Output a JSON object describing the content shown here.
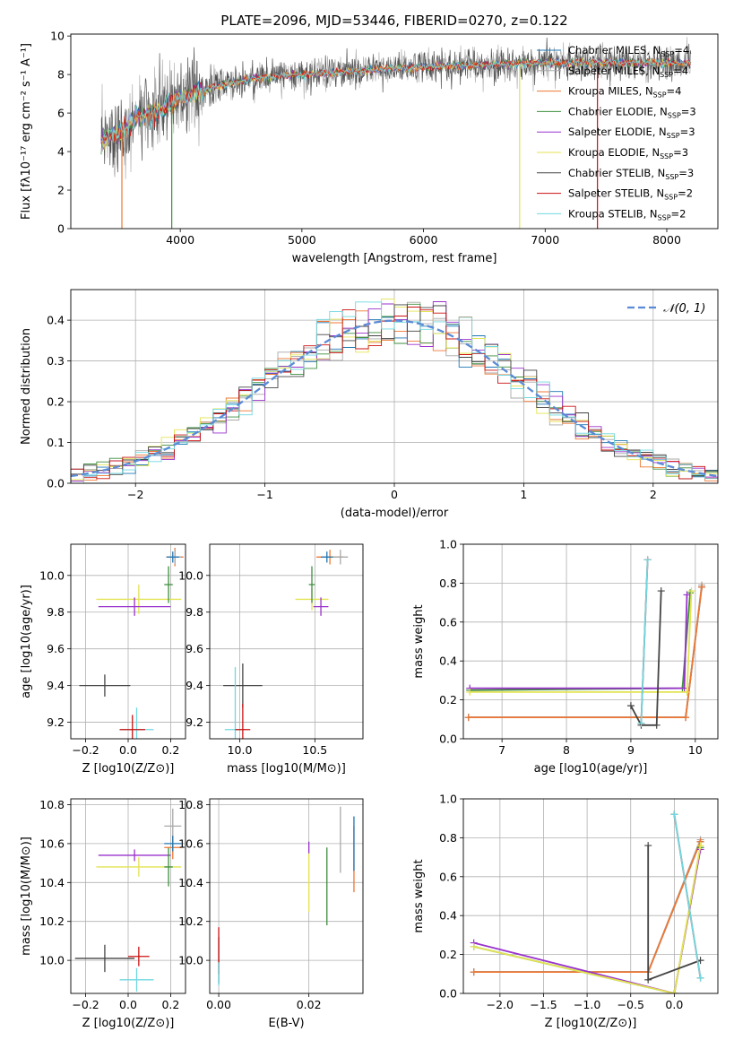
{
  "figure": {
    "title": "PLATE=2096, MJD=53446, FIBERID=0270, z=0.122"
  },
  "models": [
    {
      "name": "Chabrier MILES",
      "nssp": "4",
      "color": "#1f77b4"
    },
    {
      "name": "Salpeter MILES",
      "nssp": "4",
      "color": "#a8a8a8"
    },
    {
      "name": "Kroupa MILES",
      "nssp": "4",
      "color": "#ee7733"
    },
    {
      "name": "Chabrier ELODIE",
      "nssp": "3",
      "color": "#3e8e3e"
    },
    {
      "name": "Salpeter ELODIE",
      "nssp": "3",
      "color": "#9932cc"
    },
    {
      "name": "Kroupa ELODIE",
      "nssp": "3",
      "color": "#e3e352"
    },
    {
      "name": "Chabrier STELIB",
      "nssp": "3",
      "color": "#444444"
    },
    {
      "name": "Salpeter STELIB",
      "nssp": "2",
      "color": "#cc1111"
    },
    {
      "name": "Kroupa STELIB",
      "nssp": "2",
      "color": "#6fd8e0"
    }
  ],
  "chart_data": [
    {
      "id": "spectrum",
      "type": "line",
      "xlabel": "wavelength [Angstrom, rest frame]",
      "ylabel": "Flux [fλ10⁻¹⁷ erg cm⁻² s⁻¹ A⁻¹]",
      "xlim": [
        3100,
        8420
      ],
      "ylim": [
        0,
        10.1
      ],
      "xticks": [
        4000,
        5000,
        6000,
        7000,
        8000
      ],
      "yticks": [
        0,
        2,
        4,
        6,
        8,
        10
      ],
      "legend": "right",
      "data_range": [
        3350,
        8200
      ],
      "continuum": [
        [
          3350,
          4.6
        ],
        [
          3500,
          5.0
        ],
        [
          3650,
          5.8
        ],
        [
          3800,
          6.0
        ],
        [
          3950,
          6.6
        ],
        [
          4100,
          7.0
        ],
        [
          4300,
          7.4
        ],
        [
          4600,
          7.8
        ],
        [
          5000,
          8.0
        ],
        [
          5500,
          8.2
        ],
        [
          6000,
          8.4
        ],
        [
          6500,
          8.5
        ],
        [
          7000,
          8.6
        ],
        [
          7500,
          8.6
        ],
        [
          8000,
          8.6
        ],
        [
          8200,
          8.6
        ]
      ]
    },
    {
      "id": "residuals",
      "type": "line",
      "xlabel": "(data-model)/error",
      "ylabel": "Normed distribution",
      "xlim": [
        -2.5,
        2.5
      ],
      "ylim": [
        0,
        0.475
      ],
      "xticks": [
        -2,
        -1,
        0,
        1,
        2
      ],
      "yticks": [
        0,
        0.1,
        0.2,
        0.3,
        0.4
      ],
      "reference": {
        "name": "𝒩(0, 1)",
        "color": "#5b8bd6"
      },
      "legend": "top-right",
      "bin_width": 0.1
    },
    {
      "id": "age_vs_Z",
      "type": "scatter",
      "xlabel": "Z [log10(Z/Z⊙)]",
      "ylabel": "age  [log10(age/yr)]",
      "xlim": [
        -0.27,
        0.27
      ],
      "ylim": [
        9.11,
        10.17
      ],
      "xticks": [
        -0.2,
        0.0,
        0.2
      ],
      "yticks": [
        9.2,
        9.4,
        9.6,
        9.8,
        10.0
      ],
      "points": [
        {
          "model": 6,
          "x": -0.11,
          "y": 9.4,
          "xerr": 0.12,
          "yerr": 0.06
        },
        {
          "model": 8,
          "x": 0.04,
          "y": 9.16,
          "xerr": 0.08,
          "yerr": 0.12
        },
        {
          "model": 5,
          "x": 0.05,
          "y": 9.87,
          "xerr": 0.2,
          "yerr": 0.08
        },
        {
          "model": 4,
          "x": 0.03,
          "y": 9.83,
          "xerr": 0.17,
          "yerr": 0.05
        },
        {
          "model": 7,
          "x": 0.02,
          "y": 9.16,
          "xerr": 0.06,
          "yerr": 0.08
        },
        {
          "model": 2,
          "x": 0.22,
          "y": 10.1,
          "xerr": 0.04,
          "yerr": 0.05
        },
        {
          "model": 1,
          "x": 0.22,
          "y": 10.1,
          "xerr": 0.03,
          "yerr": 0.04
        },
        {
          "model": 3,
          "x": 0.19,
          "y": 9.95,
          "xerr": 0.02,
          "yerr": 0.1
        },
        {
          "model": 0,
          "x": 0.21,
          "y": 10.1,
          "xerr": 0.03,
          "yerr": 0.03
        }
      ]
    },
    {
      "id": "age_vs_mass",
      "type": "scatter",
      "xlabel": "mass [log10(M/M⊙)]",
      "ylabel": "",
      "xlim": [
        9.8,
        10.82
      ],
      "ylim": [
        9.11,
        10.17
      ],
      "xticks": [
        10.0,
        10.5
      ],
      "yticks": [
        9.2,
        9.4,
        9.6,
        9.8,
        10.0
      ],
      "points": [
        {
          "model": 6,
          "x": 10.02,
          "y": 9.4,
          "xerr": 0.13,
          "yerr": 0.12
        },
        {
          "model": 8,
          "x": 9.97,
          "y": 9.16,
          "xerr": 0.07,
          "yerr": 0.34
        },
        {
          "model": 7,
          "x": 10.02,
          "y": 9.16,
          "xerr": 0.05,
          "yerr": 0.14
        },
        {
          "model": 5,
          "x": 10.48,
          "y": 9.87,
          "xerr": 0.11,
          "yerr": 0.06
        },
        {
          "model": 4,
          "x": 10.54,
          "y": 9.83,
          "xerr": 0.05,
          "yerr": 0.05
        },
        {
          "model": 3,
          "x": 10.48,
          "y": 9.95,
          "xerr": 0.02,
          "yerr": 0.1
        },
        {
          "model": 2,
          "x": 10.6,
          "y": 10.1,
          "xerr": 0.09,
          "yerr": 0.04
        },
        {
          "model": 1,
          "x": 10.67,
          "y": 10.1,
          "xerr": 0.05,
          "yerr": 0.04
        },
        {
          "model": 0,
          "x": 10.58,
          "y": 10.1,
          "xerr": 0.04,
          "yerr": 0.03
        }
      ]
    },
    {
      "id": "weight_vs_age",
      "type": "line",
      "xlabel": "age  [log10(age/yr)]",
      "ylabel": "mass weight",
      "xlim": [
        6.4,
        10.35
      ],
      "ylim": [
        0,
        1.0
      ],
      "xticks": [
        7,
        8,
        9,
        10
      ],
      "yticks": [
        0.0,
        0.2,
        0.4,
        0.6,
        0.8,
        1.0
      ],
      "series": [
        {
          "model": 0,
          "x": [
            6.48,
            9.85,
            10.1
          ],
          "y": [
            0.11,
            0.11,
            0.78
          ]
        },
        {
          "model": 1,
          "x": [
            6.48,
            9.85,
            10.1
          ],
          "y": [
            0.11,
            0.11,
            0.79
          ]
        },
        {
          "model": 2,
          "x": [
            6.48,
            9.85,
            10.1
          ],
          "y": [
            0.11,
            0.11,
            0.78
          ]
        },
        {
          "model": 3,
          "x": [
            6.5,
            9.8,
            9.92
          ],
          "y": [
            0.25,
            0.26,
            0.75
          ]
        },
        {
          "model": 4,
          "x": [
            6.5,
            9.83,
            9.87
          ],
          "y": [
            0.26,
            0.26,
            0.74
          ]
        },
        {
          "model": 5,
          "x": [
            6.5,
            9.87,
            9.94
          ],
          "y": [
            0.24,
            0.24,
            0.76
          ]
        },
        {
          "model": 6,
          "x": [
            9.0,
            9.16,
            9.4,
            9.47
          ],
          "y": [
            0.17,
            0.07,
            0.07,
            0.76
          ]
        },
        {
          "model": 7,
          "x": [
            9.16,
            9.26
          ],
          "y": [
            0.08,
            0.92
          ]
        },
        {
          "model": 8,
          "x": [
            9.16,
            9.26
          ],
          "y": [
            0.08,
            0.92
          ]
        }
      ]
    },
    {
      "id": "mass_vs_Z",
      "type": "scatter",
      "xlabel": "Z [log10(Z/Z⊙)]",
      "ylabel": "mass [log10(M/M⊙)]",
      "xlim": [
        -0.27,
        0.27
      ],
      "ylim": [
        9.83,
        10.83
      ],
      "xticks": [
        -0.2,
        0.0,
        0.2
      ],
      "yticks": [
        10.0,
        10.2,
        10.4,
        10.6,
        10.8
      ],
      "points": [
        {
          "model": 6,
          "x": -0.11,
          "y": 10.01,
          "xerr": 0.14,
          "yerr": 0.07
        },
        {
          "model": 7,
          "x": 0.05,
          "y": 10.02,
          "xerr": 0.05,
          "yerr": 0.05
        },
        {
          "model": 8,
          "x": 0.04,
          "y": 9.9,
          "xerr": 0.08,
          "yerr": 0.06
        },
        {
          "model": 5,
          "x": 0.05,
          "y": 10.48,
          "xerr": 0.2,
          "yerr": 0.05
        },
        {
          "model": 4,
          "x": 0.03,
          "y": 10.54,
          "xerr": 0.17,
          "yerr": 0.03
        },
        {
          "model": 3,
          "x": 0.19,
          "y": 10.48,
          "xerr": 0.02,
          "yerr": 0.1
        },
        {
          "model": 1,
          "x": 0.21,
          "y": 10.69,
          "xerr": 0.04,
          "yerr": 0.09
        },
        {
          "model": 2,
          "x": 0.21,
          "y": 10.58,
          "xerr": 0.04,
          "yerr": 0.06
        },
        {
          "model": 0,
          "x": 0.21,
          "y": 10.6,
          "xerr": 0.04,
          "yerr": 0.04
        }
      ]
    },
    {
      "id": "mass_vs_ebv",
      "type": "scatter",
      "xlabel": "E(B-V)",
      "ylabel": "",
      "xlim": [
        -0.002,
        0.032
      ],
      "ylim": [
        9.83,
        10.83
      ],
      "xticks": [
        0.0,
        0.02
      ],
      "yticks": [
        10.0,
        10.2,
        10.4,
        10.6,
        10.8
      ],
      "points": [
        {
          "model": 6,
          "x": 0.0,
          "y": 10.0,
          "xerr": 0,
          "yerr": 0.12
        },
        {
          "model": 7,
          "x": 0.0,
          "y": 10.05,
          "xerr": 0,
          "yerr": 0.12
        },
        {
          "model": 8,
          "x": 0.0,
          "y": 9.93,
          "xerr": 0,
          "yerr": 0.06
        },
        {
          "model": 5,
          "x": 0.02,
          "y": 10.4,
          "xerr": 0,
          "yerr": 0.15
        },
        {
          "model": 4,
          "x": 0.02,
          "y": 10.58,
          "xerr": 0,
          "yerr": 0.03
        },
        {
          "model": 3,
          "x": 0.024,
          "y": 10.38,
          "xerr": 0,
          "yerr": 0.2
        },
        {
          "model": 1,
          "x": 0.027,
          "y": 10.62,
          "xerr": 0,
          "yerr": 0.17
        },
        {
          "model": 2,
          "x": 0.03,
          "y": 10.52,
          "xerr": 0,
          "yerr": 0.17
        },
        {
          "model": 0,
          "x": 0.03,
          "y": 10.6,
          "xerr": 0,
          "yerr": 0.14
        }
      ]
    },
    {
      "id": "weight_vs_Z",
      "type": "line",
      "xlabel": "Z [log10(Z/Z⊙)]",
      "ylabel": "mass weight",
      "xlim": [
        -2.42,
        0.5
      ],
      "ylim": [
        0,
        1.0
      ],
      "xticks": [
        -2.0,
        -1.5,
        -1.0,
        -0.5,
        0.0
      ],
      "yticks": [
        0.0,
        0.2,
        0.4,
        0.6,
        0.8,
        1.0
      ],
      "series": [
        {
          "model": 0,
          "x": [
            -2.3,
            -0.3,
            0.3
          ],
          "y": [
            0.11,
            0.11,
            0.78
          ]
        },
        {
          "model": 1,
          "x": [
            -2.3,
            -0.3,
            0.3
          ],
          "y": [
            0.11,
            0.11,
            0.79
          ]
        },
        {
          "model": 2,
          "x": [
            -2.3,
            -0.3,
            0.3
          ],
          "y": [
            0.11,
            0.11,
            0.78
          ]
        },
        {
          "model": 3,
          "x": [
            -2.3,
            0.0,
            0.3
          ],
          "y": [
            0.24,
            0.0,
            0.75
          ]
        },
        {
          "model": 4,
          "x": [
            -2.3,
            0.0,
            0.3
          ],
          "y": [
            0.26,
            0.0,
            0.74
          ]
        },
        {
          "model": 5,
          "x": [
            -2.3,
            0.0,
            0.3
          ],
          "y": [
            0.24,
            0.0,
            0.76
          ]
        },
        {
          "model": 6,
          "x": [
            -0.3,
            -0.3,
            0.3
          ],
          "y": [
            0.76,
            0.07,
            0.17
          ]
        },
        {
          "model": 7,
          "x": [
            0.0,
            0.3
          ],
          "y": [
            0.92,
            0.08
          ]
        },
        {
          "model": 8,
          "x": [
            0.0,
            0.3
          ],
          "y": [
            0.92,
            0.08
          ]
        }
      ]
    }
  ]
}
